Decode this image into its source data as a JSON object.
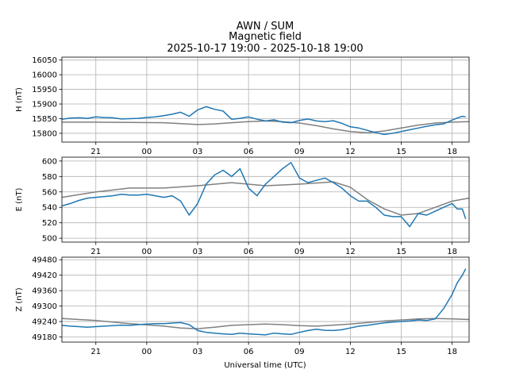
{
  "figure": {
    "title_lines": [
      "AWN / SUM",
      "Magnetic field",
      "2025-10-17 19:00 - 2025-10-18 19:00"
    ]
  },
  "chart_data": [
    {
      "type": "line",
      "ylabel": "H (nT)",
      "xlabel": "",
      "xlim": [
        0,
        24
      ],
      "ylim": [
        15770,
        16060
      ],
      "yticks": [
        15800,
        15850,
        15900,
        15950,
        16000,
        16050
      ],
      "xticks": [
        2,
        5,
        8,
        11,
        14,
        17,
        20,
        23
      ],
      "xtick_labels": [
        "21",
        "00",
        "03",
        "06",
        "09",
        "12",
        "15",
        "18"
      ],
      "grid": true,
      "series": [
        {
          "color": "#1f77b4",
          "x": [
            0,
            0.5,
            1,
            1.5,
            2,
            2.5,
            3,
            3.5,
            4,
            4.5,
            5,
            5.5,
            6,
            6.5,
            7,
            7.5,
            8,
            8.5,
            9,
            9.5,
            10,
            10.5,
            11,
            11.5,
            12,
            12.5,
            13,
            13.5,
            14,
            14.5,
            15,
            15.5,
            16,
            16.5,
            17,
            17.5,
            18,
            18.5,
            19,
            19.5,
            20,
            20.5,
            21,
            21.5,
            22,
            22.5,
            23,
            23.3,
            23.6,
            23.8
          ],
          "values": [
            15848,
            15852,
            15853,
            15851,
            15856,
            15854,
            15853,
            15849,
            15850,
            15851,
            15854,
            15856,
            15860,
            15865,
            15872,
            15858,
            15880,
            15891,
            15882,
            15876,
            15848,
            15851,
            15856,
            15848,
            15842,
            15846,
            15838,
            15836,
            15844,
            15849,
            15842,
            15840,
            15843,
            15834,
            15822,
            15818,
            15810,
            15802,
            15796,
            15800,
            15806,
            15812,
            15818,
            15824,
            15829,
            15832,
            15845,
            15852,
            15858,
            15856
          ]
        },
        {
          "color": "#808080",
          "x": [
            0,
            2,
            4,
            6,
            7,
            8,
            9,
            10,
            11,
            12,
            13,
            14,
            15,
            16,
            17,
            18,
            19,
            20,
            21,
            22,
            23,
            24
          ],
          "values": [
            15838,
            15838,
            15837,
            15836,
            15833,
            15830,
            15832,
            15836,
            15840,
            15842,
            15840,
            15835,
            15826,
            15815,
            15806,
            15802,
            15808,
            15818,
            15828,
            15835,
            15838,
            15840
          ]
        }
      ]
    },
    {
      "type": "line",
      "ylabel": "E (nT)",
      "xlabel": "",
      "xlim": [
        0,
        24
      ],
      "ylim": [
        495,
        605
      ],
      "yticks": [
        500,
        520,
        540,
        560,
        580,
        600
      ],
      "xticks": [
        2,
        5,
        8,
        11,
        14,
        17,
        20,
        23
      ],
      "xtick_labels": [
        "21",
        "00",
        "03",
        "06",
        "09",
        "12",
        "15",
        "18"
      ],
      "grid": true,
      "series": [
        {
          "color": "#1f77b4",
          "x": [
            0,
            0.5,
            1,
            1.5,
            2,
            2.5,
            3,
            3.5,
            4,
            4.5,
            5,
            5.5,
            6,
            6.5,
            7,
            7.5,
            8,
            8.5,
            9,
            9.5,
            10,
            10.5,
            11,
            11.5,
            12,
            12.5,
            13,
            13.5,
            14,
            14.5,
            15,
            15.5,
            16,
            16.5,
            17,
            17.5,
            18,
            18.5,
            19,
            19.5,
            20,
            20.5,
            21,
            21.5,
            22,
            22.5,
            23,
            23.3,
            23.6,
            23.8
          ],
          "values": [
            542,
            545,
            549,
            552,
            553,
            554,
            555,
            557,
            556,
            556,
            557,
            555,
            553,
            555,
            548,
            530,
            545,
            570,
            582,
            588,
            580,
            590,
            565,
            555,
            570,
            580,
            590,
            598,
            578,
            572,
            575,
            578,
            572,
            565,
            555,
            548,
            548,
            540,
            530,
            528,
            528,
            515,
            532,
            530,
            535,
            540,
            545,
            538,
            538,
            525
          ]
        },
        {
          "color": "#808080",
          "x": [
            0,
            2,
            4,
            6,
            8,
            10,
            12,
            14,
            16,
            17,
            18,
            19,
            20,
            21,
            22,
            23,
            24
          ],
          "values": [
            553,
            560,
            565,
            565,
            568,
            572,
            568,
            570,
            573,
            566,
            550,
            538,
            530,
            532,
            540,
            548,
            552
          ]
        }
      ]
    },
    {
      "type": "line",
      "ylabel": "Z (nT)",
      "xlabel": "Universal time (UTC)",
      "xlim": [
        0,
        24
      ],
      "ylim": [
        49160,
        49490
      ],
      "yticks": [
        49180,
        49240,
        49300,
        49360,
        49420,
        49480
      ],
      "xticks": [
        2,
        5,
        8,
        11,
        14,
        17,
        20,
        23
      ],
      "xtick_labels": [
        "21",
        "00",
        "03",
        "06",
        "09",
        "12",
        "15",
        "18"
      ],
      "grid": true,
      "series": [
        {
          "color": "#1f77b4",
          "x": [
            0,
            0.5,
            1,
            1.5,
            2,
            2.5,
            3,
            3.5,
            4,
            4.5,
            5,
            5.5,
            6,
            6.5,
            7,
            7.5,
            8,
            8.5,
            9,
            9.5,
            10,
            10.5,
            11,
            11.5,
            12,
            12.5,
            13,
            13.5,
            14,
            14.5,
            15,
            15.5,
            16,
            16.5,
            17,
            17.5,
            18,
            18.5,
            19,
            19.5,
            20,
            20.5,
            21,
            21.5,
            22,
            22.5,
            23,
            23.3,
            23.6,
            23.8
          ],
          "values": [
            49225,
            49222,
            49220,
            49218,
            49220,
            49222,
            49224,
            49226,
            49225,
            49228,
            49230,
            49232,
            49232,
            49234,
            49236,
            49228,
            49205,
            49198,
            49195,
            49192,
            49190,
            49195,
            49192,
            49190,
            49188,
            49195,
            49192,
            49190,
            49198,
            49205,
            49210,
            49206,
            49205,
            49208,
            49215,
            49222,
            49225,
            49230,
            49235,
            49238,
            49240,
            49242,
            49246,
            49244,
            49250,
            49290,
            49345,
            49390,
            49420,
            49445
          ]
        },
        {
          "color": "#808080",
          "x": [
            0,
            2,
            4,
            6,
            7,
            8,
            9,
            10,
            11,
            12,
            13,
            14,
            15,
            16,
            17,
            18,
            19,
            20,
            21,
            22,
            23,
            24
          ],
          "values": [
            49252,
            49244,
            49232,
            49222,
            49215,
            49212,
            49218,
            49225,
            49228,
            49230,
            49228,
            49224,
            49222,
            49226,
            49230,
            49236,
            49242,
            49246,
            49250,
            49252,
            49250,
            49248
          ]
        }
      ]
    }
  ]
}
